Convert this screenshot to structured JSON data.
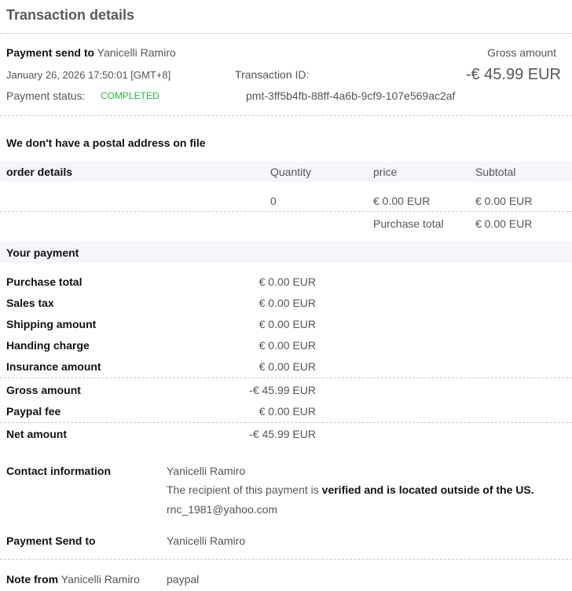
{
  "title": "Transaction details",
  "header": {
    "payment_send_to_label": "Payment send to",
    "payment_send_to_name": "Yanicelli Ramiro",
    "datetime": "January 26, 2026 17:50:01 [GMT+8]",
    "status_label": "Payment status:",
    "status_value": "COMPLETED",
    "transaction_id_label": "Transaction ID:",
    "transaction_id": "pmt-3ff5b4fb-88ff-4a6b-9cf9-107e569ac2af",
    "gross_label": "Gross amount",
    "gross_value": "-€ 45.99 EUR"
  },
  "postal_notice": "We don't have a postal address on file",
  "order": {
    "headers": [
      "order details",
      "Quantity",
      "price",
      "Subtotal"
    ],
    "row": {
      "quantity": "0",
      "price": "€ 0.00 EUR",
      "subtotal": "€ 0.00 EUR"
    },
    "purchase_total_label": "Purchase total",
    "purchase_total_value": "€ 0.00 EUR"
  },
  "payment": {
    "heading": "Your payment",
    "rows": [
      {
        "label": "Purchase total",
        "value": "€ 0.00 EUR"
      },
      {
        "label": "Sales tax",
        "value": "€ 0.00 EUR"
      },
      {
        "label": "Shipping amount",
        "value": "€ 0.00 EUR"
      },
      {
        "label": "Handing charge",
        "value": "€ 0.00 EUR"
      },
      {
        "label": "Insurance amount",
        "value": "€ 0.00 EUR"
      },
      {
        "label": "Gross amount",
        "value": "-€ 45.99 EUR"
      },
      {
        "label": "Paypal fee",
        "value": "€ 0.00 EUR"
      },
      {
        "label": "Net amount",
        "value": "-€ 45.99 EUR"
      }
    ]
  },
  "contact": {
    "label": "Contact information",
    "name": "Yanicelli Ramiro",
    "verified_prefix": "The recipient of this payment is ",
    "verified_bold": "verified and is located outside of the US.",
    "email": "rnc_1981@yahoo.com"
  },
  "send_to": {
    "label": "Payment Send to",
    "name": "Yanicelli Ramiro"
  },
  "note": {
    "label": "Note from",
    "name": "Yanicelli Ramiro",
    "text": "paypal"
  },
  "colors": {
    "status_green": "#22bb33",
    "band": "#f5f6fc"
  }
}
